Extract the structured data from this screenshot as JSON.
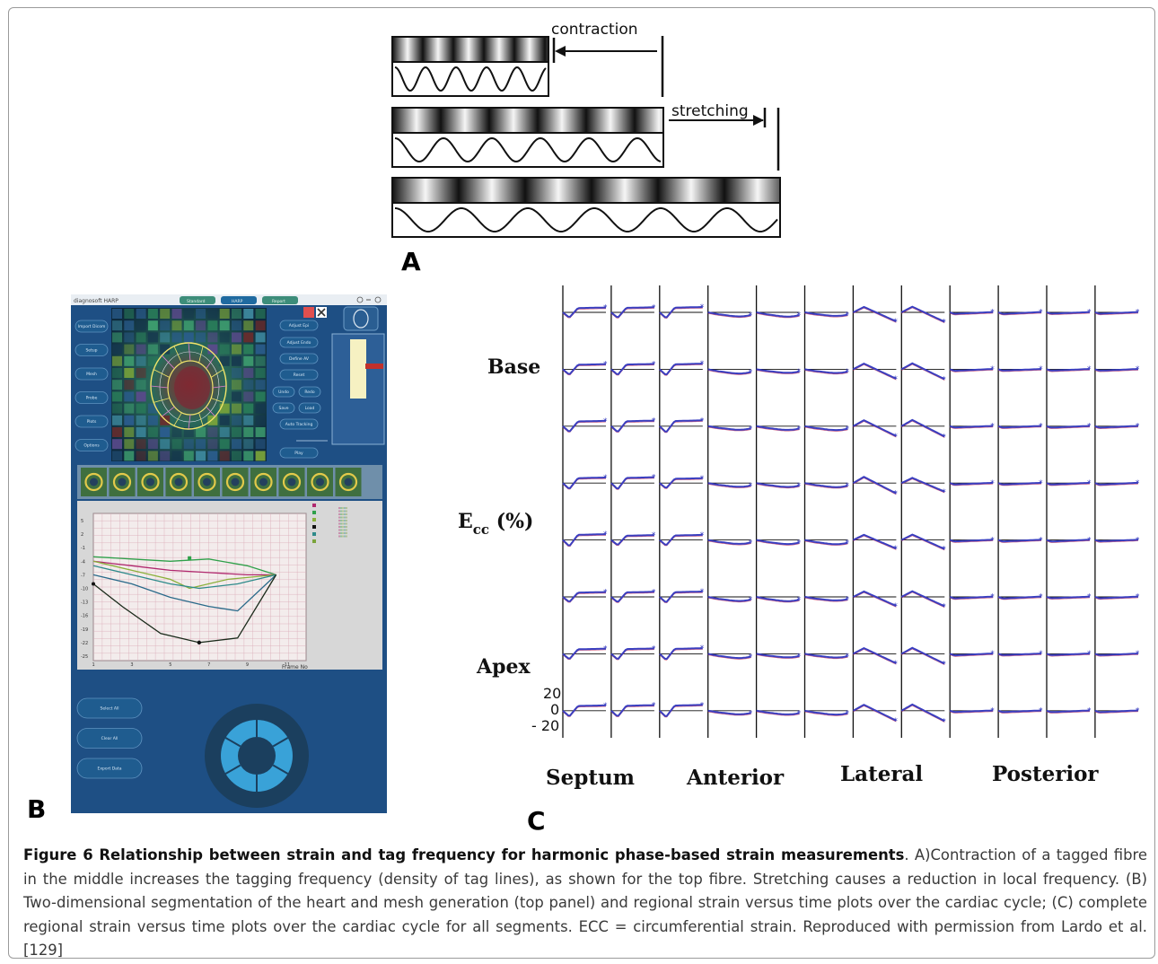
{
  "panel_a": {
    "label_contraction": "contraction",
    "label_stretching": "stretching",
    "panel_letter": "A"
  },
  "panel_b": {
    "panel_letter": "B",
    "app_title": "diagnosoft HARP",
    "tabs": [
      "Standard",
      "HARP",
      "Report"
    ],
    "left_buttons": [
      "Import Dicom",
      "Setup",
      "Mesh",
      "Probe",
      "Plots",
      "Options"
    ],
    "right_buttons": [
      "Adjust Epi",
      "Adjust Endo",
      "Define AV",
      "Reset",
      "Undo",
      "Redo",
      "Save",
      "Load",
      "Auto Tracking",
      "Play"
    ],
    "plot_yticks": [
      "5",
      "2",
      "-1",
      "-4",
      "-7",
      "-10",
      "-13",
      "-16",
      "-19",
      "-22",
      "-25"
    ],
    "plot_xticks": [
      "1",
      "3",
      "5",
      "7",
      "9",
      "11"
    ],
    "plot_xlabel": "Frame No",
    "bottom_buttons": [
      "Select All",
      "Clear All",
      "Export Data"
    ]
  },
  "panel_c": {
    "panel_letter": "C",
    "row_labels": {
      "base": "Base",
      "ecc_main": "E",
      "ecc_sub": "cc",
      "ecc_tail": " (%)",
      "apex": "Apex"
    },
    "column_labels": [
      "Septum",
      "Anterior",
      "Lateral",
      "Posterior"
    ],
    "y_scale_ticks": [
      "20",
      "0",
      "- 20"
    ],
    "chart_data": {
      "type": "line",
      "rows": 8,
      "columns": 12,
      "description_units": "Ecc (%)",
      "ylim": [
        -20,
        20
      ]
    }
  },
  "caption": {
    "bold": "Figure 6 Relationship between strain and tag frequency for harmonic phase-based strain measurements",
    "body": ". A)Contraction of a tagged fibre in the middle increases the tagging frequency (density of tag lines), as shown for the top fibre. Stretching causes a reduction in local frequency. (B) Two-dimensional segmentation of the heart and mesh generation (top panel) and regional strain versus time plots over the cardiac cycle; (C) complete regional strain versus time plots over the cardiac cycle for all segments. ECC = circumferential strain. Reproduced with permission from Lardo et al. [129]"
  },
  "colors": {
    "ui_blue": "#1e4f84",
    "curve_blue": "#3a3fc0",
    "curve_red": "#c0305a"
  }
}
